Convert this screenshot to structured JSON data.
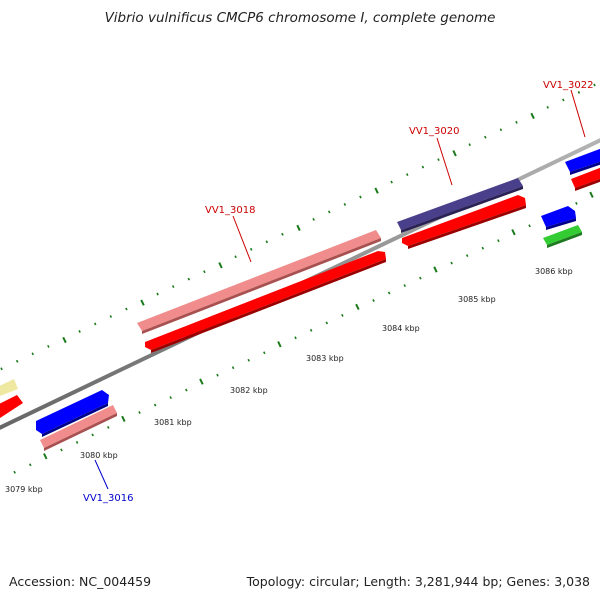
{
  "title": "Vibrio vulnificus CMCP6 chromosome I, complete genome",
  "footer": {
    "accession": "Accession: NC_004459",
    "summary": "Topology: circular; Length: 3,281,944 bp; Genes: 3,038"
  },
  "scale_labels": [
    "3079 kbp",
    "3080 kbp",
    "3081 kbp",
    "3082 kbp",
    "3083 kbp",
    "3084 kbp",
    "3085 kbp",
    "3086 kbp"
  ],
  "gene_labels": [
    {
      "text": "VV1_3016",
      "color": "#0000cc"
    },
    {
      "text": "VV1_3018",
      "color": "#cc0000"
    },
    {
      "text": "VV1_3020",
      "color": "#cc0000"
    },
    {
      "text": "VV1_3022",
      "color": "#cc0000"
    }
  ],
  "colors": {
    "backbone": "#8c8c8c",
    "cds_red": "#ff0000",
    "cds_pink": "#f08c8c",
    "cds_blue": "#0000ff",
    "cds_navy": "#4a3f8a",
    "cds_green": "#33cc33",
    "cds_yellow": "#eee8a0",
    "tick_green": "#1a7a1a"
  }
}
